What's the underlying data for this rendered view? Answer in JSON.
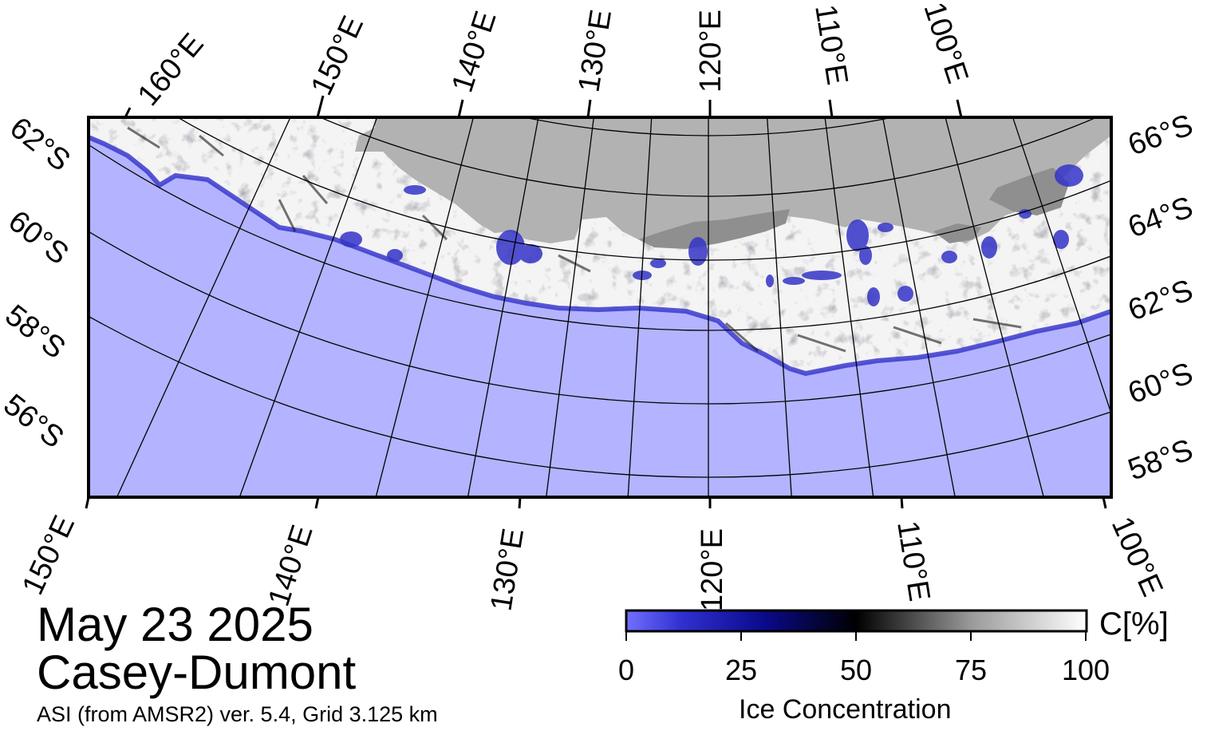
{
  "date": "May 23 2025",
  "region": "Casey-Dumont",
  "source": "ASI (from AMSR2) ver. 5.4,  Grid 3.125 km",
  "colorbar": {
    "title": "Ice Concentration",
    "unit": "C[%]",
    "ticks": [
      "0",
      "25",
      "50",
      "75",
      "100"
    ],
    "tick_values": [
      0,
      25,
      50,
      75,
      100
    ],
    "colors": [
      "#6c6cff",
      "#1a1ab4",
      "#00005a",
      "#000000",
      "#7a7a7a",
      "#ffffff"
    ]
  },
  "graticule": {
    "top_lon_labels": [
      "160°E",
      "150°E",
      "140°E",
      "130°E",
      "120°E",
      "110°E",
      "100°E"
    ],
    "bottom_lon_labels": [
      "150°E",
      "140°E",
      "130°E",
      "120°E",
      "110°E",
      "100°E"
    ],
    "left_lat_labels": [
      "62°S",
      "60°S",
      "58°S",
      "56°S"
    ],
    "right_lat_labels": [
      "66°S",
      "64°S",
      "62°S",
      "60°S",
      "58°S"
    ]
  },
  "colors": {
    "ocean": "#b3b3ff",
    "land": "#b2b2b2",
    "land_dark": "#8f8f8f",
    "ice": "#f4f4f4",
    "ice_edge": "#3a3acc"
  }
}
